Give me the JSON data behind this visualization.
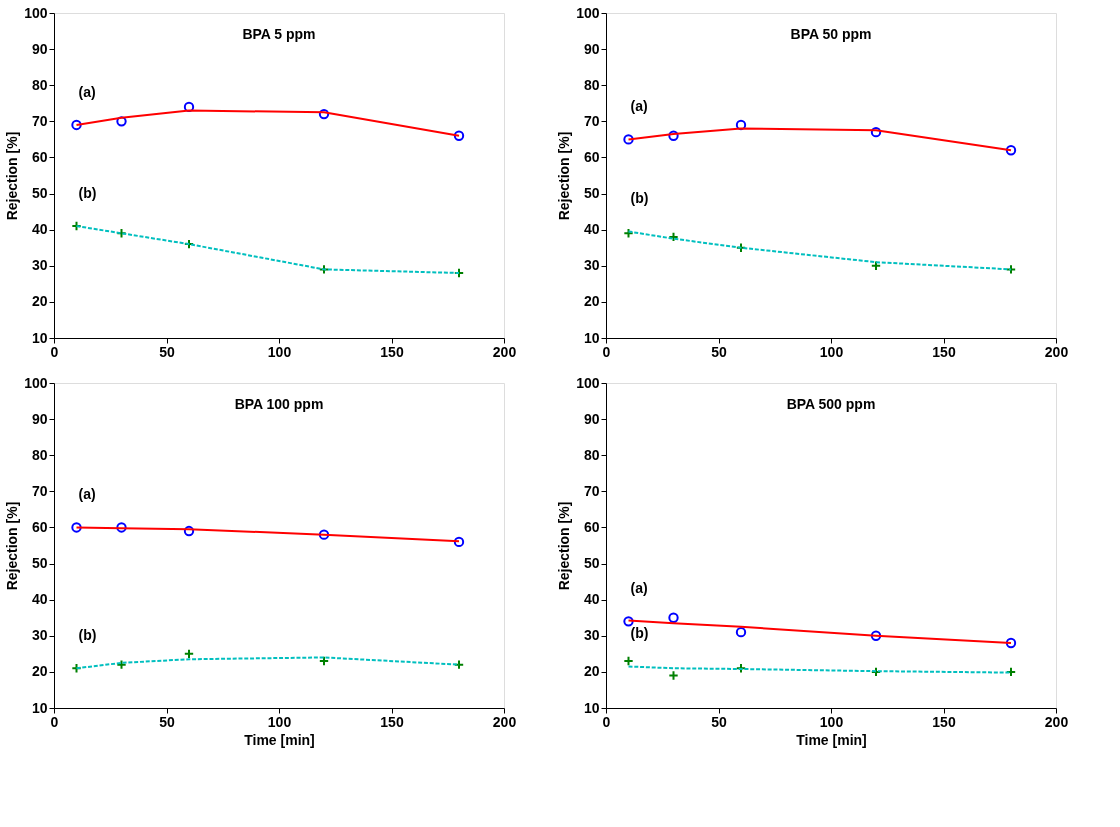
{
  "chart_data": [
    {
      "type": "scatter",
      "title": "BPA 5 ppm",
      "ylabel": "Rejection [%]",
      "xlim": [
        0,
        200
      ],
      "ylim": [
        10,
        100
      ],
      "xticks": [
        0,
        50,
        100,
        150,
        200
      ],
      "yticks": [
        10,
        20,
        30,
        40,
        50,
        60,
        70,
        80,
        90,
        100
      ],
      "grid": false,
      "annotations": [
        "(a)",
        "(b)"
      ],
      "series": [
        {
          "type": "line",
          "color": "#ff0000",
          "line_style": "solid",
          "x": [
            10,
            30,
            60,
            120,
            180
          ],
          "values": [
            69,
            71,
            73,
            72.5,
            66
          ]
        },
        {
          "type": "line",
          "color": "#00bfbf",
          "line_style": "dashed",
          "x": [
            10,
            30,
            60,
            120,
            180
          ],
          "values": [
            41,
            39,
            36,
            29,
            28
          ]
        },
        {
          "color": "#0000ff",
          "marker": "circle",
          "x": [
            10,
            30,
            60,
            120,
            180
          ],
          "values": [
            69,
            70,
            74,
            72,
            66
          ]
        },
        {
          "color": "#008000",
          "marker": "cross",
          "x": [
            10,
            30,
            60,
            120,
            180
          ],
          "values": [
            41,
            39,
            36,
            29,
            28
          ]
        }
      ]
    },
    {
      "type": "scatter",
      "title": "BPA 50 ppm",
      "ylabel": "Rejection [%]",
      "xlim": [
        0,
        200
      ],
      "ylim": [
        10,
        100
      ],
      "xticks": [
        0,
        50,
        100,
        150,
        200
      ],
      "yticks": [
        10,
        20,
        30,
        40,
        50,
        60,
        70,
        80,
        90,
        100
      ],
      "grid": false,
      "annotations": [
        "(a)",
        "(b)"
      ],
      "series": [
        {
          "type": "line",
          "color": "#ff0000",
          "line_style": "solid",
          "x": [
            10,
            30,
            60,
            120,
            180
          ],
          "values": [
            65,
            66.5,
            68,
            67.5,
            62
          ]
        },
        {
          "type": "line",
          "color": "#00bfbf",
          "line_style": "dashed",
          "x": [
            10,
            30,
            60,
            120,
            180
          ],
          "values": [
            39.5,
            37.5,
            35,
            31,
            29
          ]
        },
        {
          "color": "#0000ff",
          "marker": "circle",
          "x": [
            10,
            30,
            60,
            120,
            180
          ],
          "values": [
            65,
            66,
            69,
            67,
            62
          ]
        },
        {
          "color": "#008000",
          "marker": "cross",
          "x": [
            10,
            30,
            60,
            120,
            180
          ],
          "values": [
            39,
            38,
            35,
            30,
            29
          ]
        }
      ]
    },
    {
      "type": "scatter",
      "title": "BPA 100 ppm",
      "xlabel": "Time [min]",
      "ylabel": "Rejection [%]",
      "xlim": [
        0,
        200
      ],
      "ylim": [
        10,
        100
      ],
      "xticks": [
        0,
        50,
        100,
        150,
        200
      ],
      "yticks": [
        10,
        20,
        30,
        40,
        50,
        60,
        70,
        80,
        90,
        100
      ],
      "grid": false,
      "annotations": [
        "(a)",
        "(b)"
      ],
      "series": [
        {
          "type": "line",
          "color": "#ff0000",
          "line_style": "solid",
          "x": [
            10,
            30,
            60,
            120,
            180
          ],
          "values": [
            60,
            59.8,
            59.5,
            58,
            56.2
          ]
        },
        {
          "type": "line",
          "color": "#00bfbf",
          "line_style": "dashed",
          "x": [
            10,
            30,
            60,
            120,
            180
          ],
          "values": [
            21,
            22.5,
            23.5,
            24,
            22
          ]
        },
        {
          "color": "#0000ff",
          "marker": "circle",
          "x": [
            10,
            30,
            60,
            120,
            180
          ],
          "values": [
            60,
            60,
            59,
            58,
            56
          ]
        },
        {
          "color": "#008000",
          "marker": "cross",
          "x": [
            10,
            30,
            60,
            120,
            180
          ],
          "values": [
            21,
            22,
            25,
            23,
            22
          ]
        }
      ]
    },
    {
      "type": "scatter",
      "title": "BPA 500 ppm",
      "xlabel": "Time [min]",
      "ylabel": "Rejection [%]",
      "xlim": [
        0,
        200
      ],
      "ylim": [
        10,
        100
      ],
      "xticks": [
        0,
        50,
        100,
        150,
        200
      ],
      "yticks": [
        10,
        20,
        30,
        40,
        50,
        60,
        70,
        80,
        90,
        100
      ],
      "grid": false,
      "annotations": [
        "(a)",
        "(b)"
      ],
      "series": [
        {
          "type": "line",
          "color": "#ff0000",
          "line_style": "solid",
          "x": [
            10,
            30,
            60,
            120,
            180
          ],
          "values": [
            34.2,
            33.5,
            32.5,
            30,
            28
          ]
        },
        {
          "type": "line",
          "color": "#00bfbf",
          "line_style": "dashed",
          "x": [
            10,
            30,
            60,
            120,
            180
          ],
          "values": [
            21.5,
            21,
            20.8,
            20.2,
            19.8
          ]
        },
        {
          "color": "#0000ff",
          "marker": "circle",
          "x": [
            10,
            30,
            60,
            120,
            180
          ],
          "values": [
            34,
            35,
            31,
            30,
            28
          ]
        },
        {
          "color": "#008000",
          "marker": "cross",
          "x": [
            10,
            30,
            60,
            120,
            180
          ],
          "values": [
            23,
            19,
            21,
            20,
            20
          ]
        }
      ]
    }
  ]
}
